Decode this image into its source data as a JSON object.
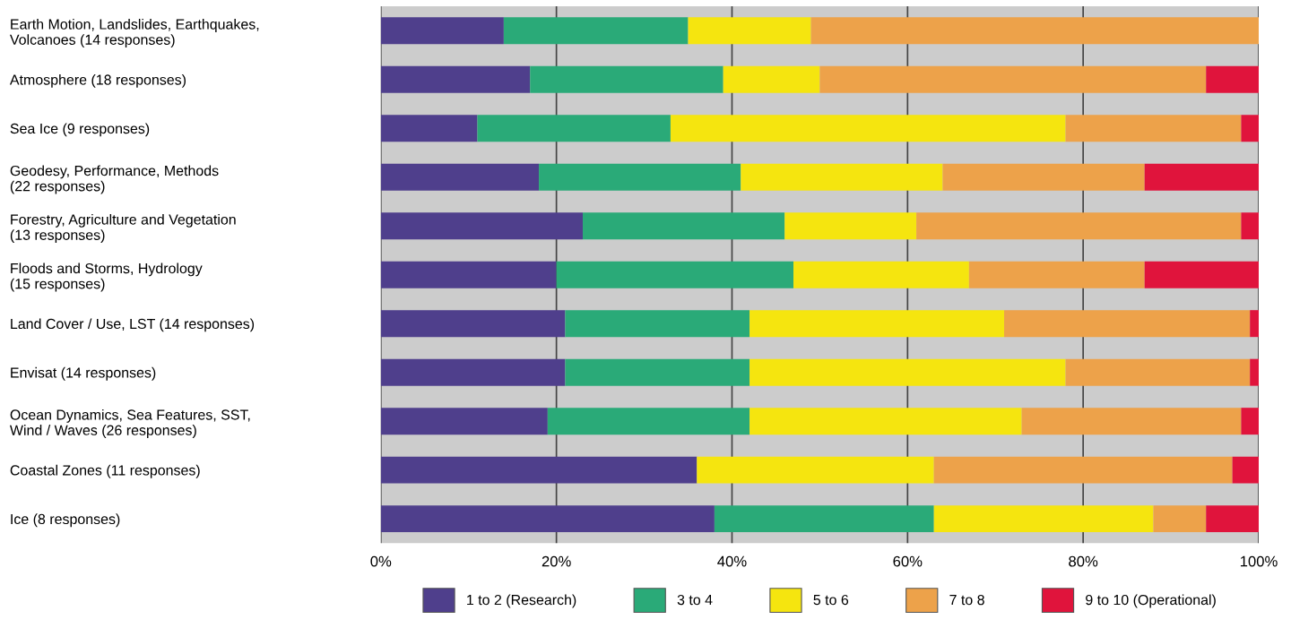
{
  "chart_data": {
    "type": "bar",
    "orientation": "horizontal",
    "stacked": true,
    "categories": [
      "Earth Motion, Landslides, Earthquakes,\nVolcanoes (14 responses)",
      "Atmosphere (18 responses)",
      "Sea Ice (9 responses)",
      "Geodesy, Performance, Methods\n(22 responses)",
      "Forestry, Agriculture and Vegetation\n(13 responses)",
      "Floods and Storms, Hydrology\n(15 responses)",
      "Land Cover / Use, LST (14 responses)",
      "Envisat (14 responses)",
      "Ocean Dynamics, Sea Features, SST,\nWind / Waves (26 responses)",
      "Coastal Zones (11 responses)",
      "Ice (8 responses)"
    ],
    "series": [
      {
        "name": "1 to 2 (Research)",
        "color": "#4f3f8c",
        "values": [
          14,
          17,
          11,
          18,
          23,
          20,
          21,
          21,
          19,
          36,
          38
        ]
      },
      {
        "name": "3 to 4",
        "color": "#2aaa78",
        "values": [
          21,
          22,
          22,
          23,
          23,
          27,
          21,
          21,
          23,
          0,
          25
        ]
      },
      {
        "name": "5 to 6",
        "color": "#f5e50f",
        "values": [
          14,
          11,
          45,
          23,
          15,
          20,
          29,
          36,
          31,
          27,
          25
        ]
      },
      {
        "name": "7 to 8",
        "color": "#eda24a",
        "values": [
          51,
          44,
          20,
          23,
          37,
          20,
          28,
          21,
          25,
          34,
          6
        ]
      },
      {
        "name": "9 to 10 (Operational)",
        "color": "#e0143c",
        "values": [
          0,
          6,
          2,
          13,
          2,
          13,
          1,
          1,
          2,
          3,
          6
        ]
      }
    ],
    "xlim": [
      0,
      100
    ],
    "xticks": [
      {
        "value": 0,
        "label": "0%"
      },
      {
        "value": 20,
        "label": "20%"
      },
      {
        "value": 40,
        "label": "40%"
      },
      {
        "value": 60,
        "label": "60%"
      },
      {
        "value": 80,
        "label": "80%"
      },
      {
        "value": 100,
        "label": "100%"
      }
    ],
    "grid": "x",
    "legend": "bottom"
  }
}
